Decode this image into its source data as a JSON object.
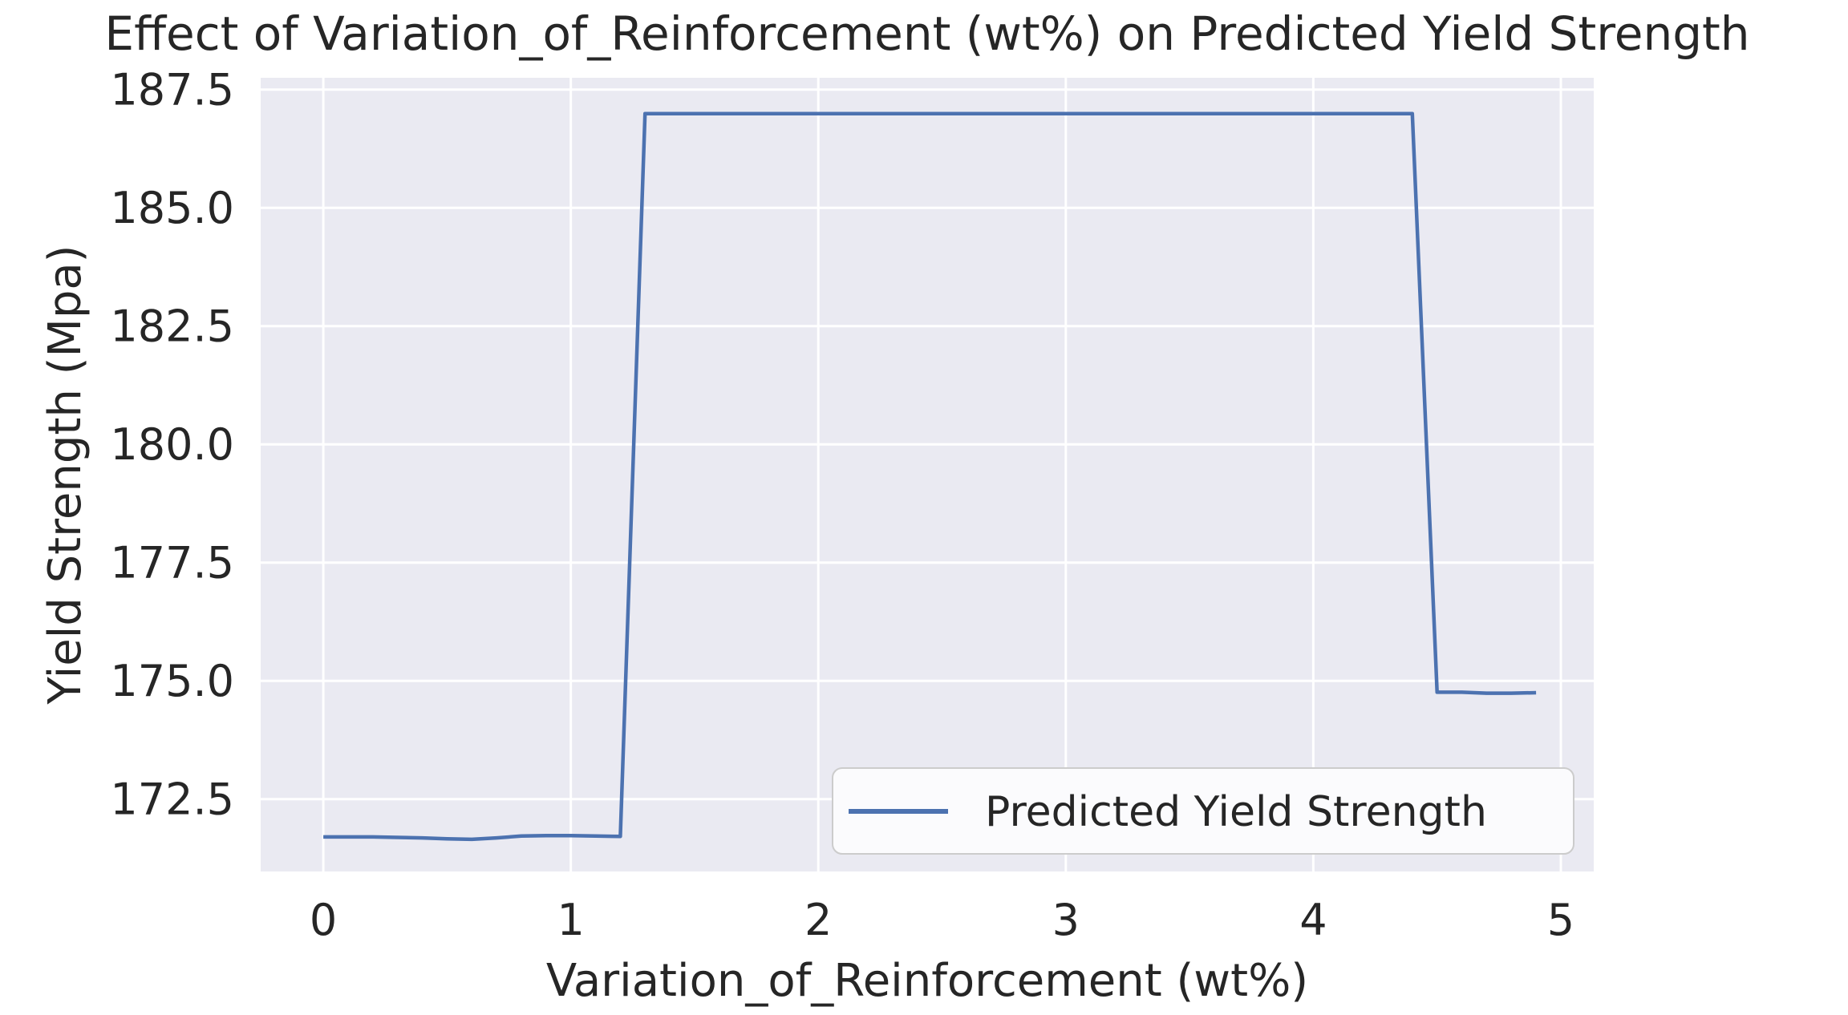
{
  "chart_data": {
    "type": "line",
    "title": "Effect of Variation_of_Reinforcement (wt%) on Predicted Yield Strength",
    "xlabel": "Variation_of_Reinforcement (wt%)",
    "ylabel": "Yield Strength (Mpa)",
    "x": [
      0.0,
      0.1,
      0.2,
      0.3,
      0.4,
      0.5,
      0.6,
      0.7,
      0.8,
      0.9,
      1.0,
      1.1,
      1.2,
      1.3,
      1.4,
      1.5,
      1.6,
      1.7,
      1.8,
      1.9,
      2.0,
      2.1,
      2.2,
      2.3,
      2.4,
      2.5,
      2.6,
      2.7,
      2.8,
      2.9,
      3.0,
      3.1,
      3.2,
      3.3,
      3.4,
      3.5,
      3.6,
      3.7,
      3.8,
      3.9,
      4.0,
      4.1,
      4.2,
      4.3,
      4.4,
      4.5,
      4.6,
      4.7,
      4.8,
      4.9
    ],
    "series": [
      {
        "name": "Predicted Yield Strength",
        "color": "#4c72b0",
        "values": [
          171.7,
          171.7,
          171.7,
          171.69,
          171.68,
          171.66,
          171.65,
          171.68,
          171.72,
          171.73,
          171.73,
          171.72,
          171.71,
          186.99,
          186.99,
          186.99,
          186.99,
          186.99,
          186.99,
          186.99,
          186.99,
          186.99,
          186.99,
          186.99,
          186.99,
          186.99,
          186.99,
          186.99,
          186.99,
          186.99,
          186.99,
          186.99,
          186.99,
          186.99,
          186.99,
          186.99,
          186.99,
          186.99,
          186.99,
          186.99,
          186.99,
          186.99,
          186.99,
          186.99,
          186.99,
          174.76,
          174.76,
          174.74,
          174.74,
          174.75
        ]
      }
    ],
    "xticks": [
      0,
      1,
      2,
      3,
      4,
      5
    ],
    "xtick_labels": [
      "0",
      "1",
      "2",
      "3",
      "4",
      "5"
    ],
    "yticks": [
      172.5,
      175.0,
      177.5,
      180.0,
      182.5,
      185.0,
      187.5
    ],
    "ytick_labels": [
      "172.5",
      "175.0",
      "177.5",
      "180.0",
      "182.5",
      "185.0",
      "187.5"
    ],
    "xlim": [
      -0.253,
      5.133
    ],
    "ylim": [
      170.97,
      187.75
    ],
    "grid": true,
    "legend": {
      "position": "lower right",
      "label": "Predicted Yield Strength"
    },
    "colors": {
      "line": "#4c72b0",
      "plot_background": "#eaeaf2",
      "grid": "#ffffff",
      "text": "#262626",
      "legend_fill": "#fbfbfd",
      "legend_border": "#cccccc"
    }
  }
}
